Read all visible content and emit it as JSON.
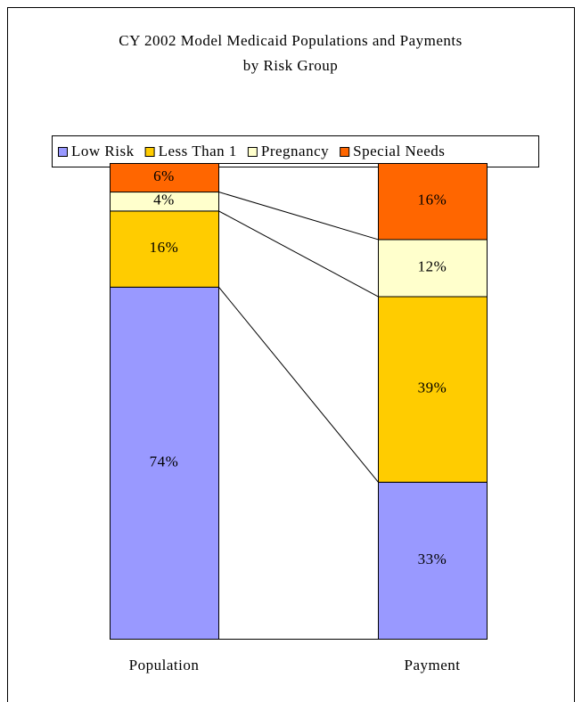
{
  "chart_data": {
    "type": "stacked-bar",
    "title": [
      "CY 2002 Model Medicaid Populations and Payments",
      "by Risk Group"
    ],
    "categories": [
      "Population",
      "Payment"
    ],
    "series": [
      {
        "name": "Low Risk",
        "color": "#9999ff",
        "values": [
          74,
          33
        ],
        "value_labels": [
          "74%",
          "33%"
        ]
      },
      {
        "name": "Less Than 1",
        "color": "#ffcc00",
        "values": [
          16,
          39
        ],
        "value_labels": [
          "16%",
          "39%"
        ]
      },
      {
        "name": "Pregnancy",
        "color": "#ffffcc",
        "values": [
          4,
          12
        ],
        "value_labels": [
          "4%",
          "12%"
        ]
      },
      {
        "name": "Special Needs",
        "color": "#ff6600",
        "values": [
          6,
          16
        ],
        "value_labels": [
          "6%",
          "16%"
        ]
      }
    ],
    "legend": "top"
  }
}
